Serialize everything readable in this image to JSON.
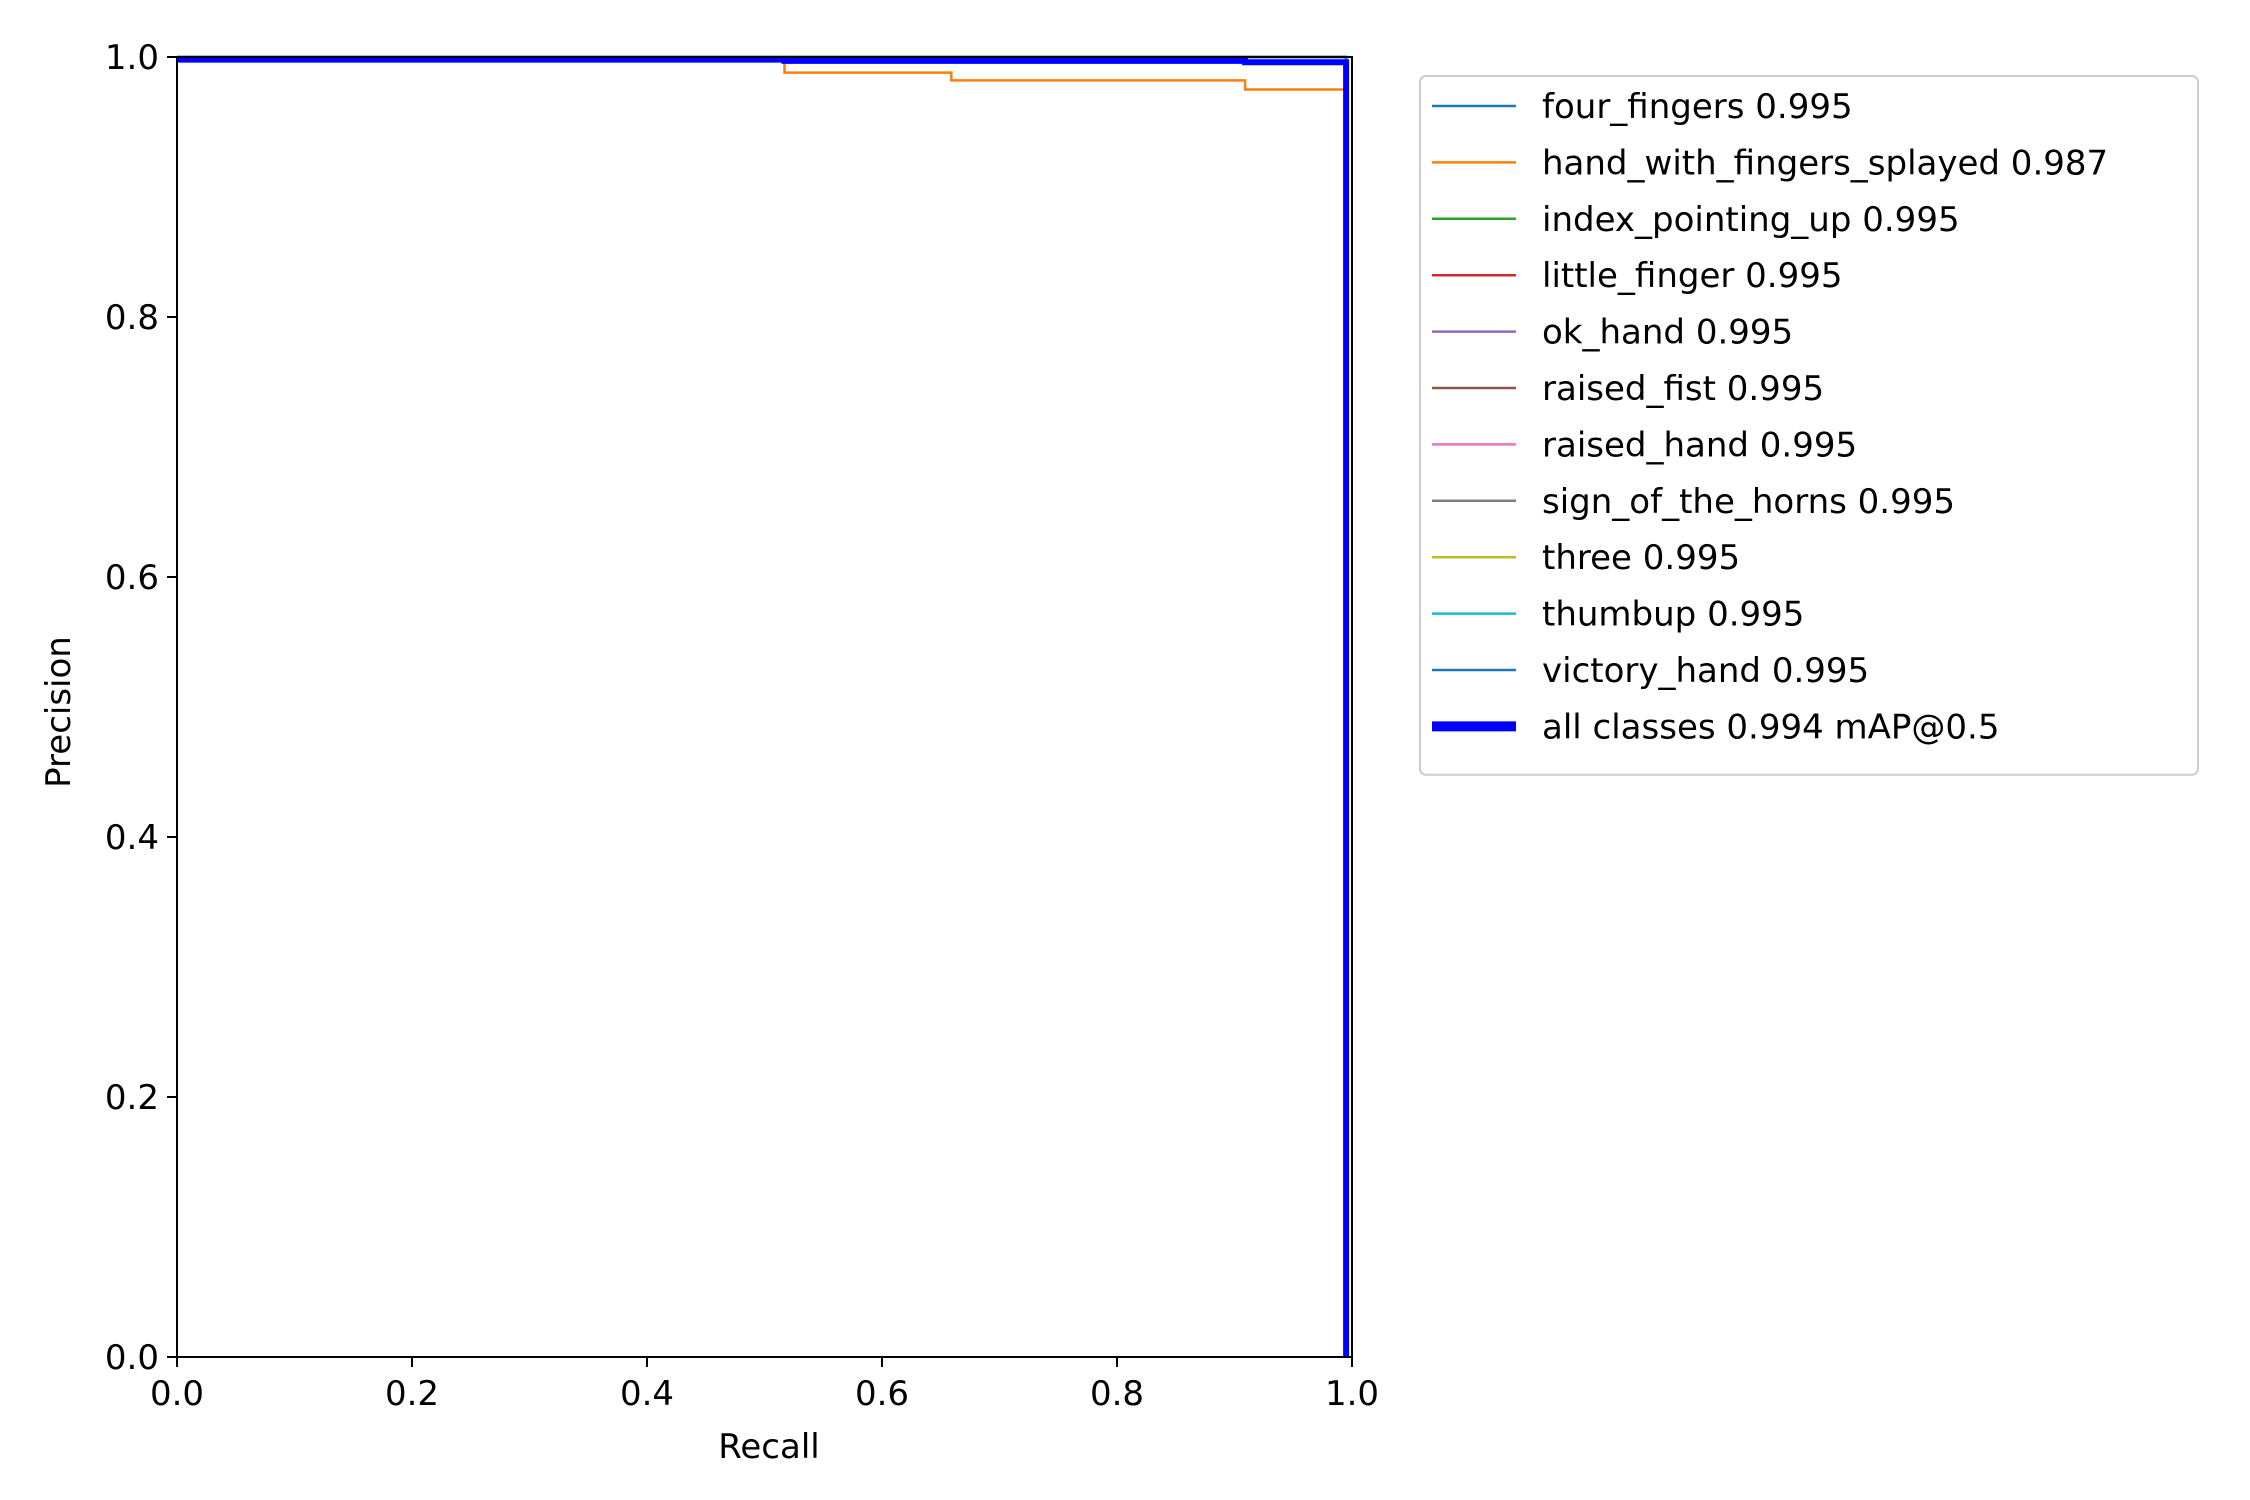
{
  "chart_data": {
    "type": "line",
    "title": "",
    "xlabel": "Recall",
    "ylabel": "Precision",
    "xlim": [
      0.0,
      1.0
    ],
    "ylim": [
      0.0,
      1.0
    ],
    "xticks": [
      "0.0",
      "0.2",
      "0.4",
      "0.6",
      "0.8",
      "1.0"
    ],
    "yticks": [
      "0.0",
      "0.2",
      "0.4",
      "0.6",
      "0.8",
      "1.0"
    ],
    "grid": false,
    "legend_position": "outside-right",
    "series": [
      {
        "name": "four_fingers 0.995",
        "color": "#1f77b4",
        "width": 1,
        "points": [
          [
            0,
            1.0
          ],
          [
            0.995,
            1.0
          ],
          [
            0.995,
            0.0
          ]
        ]
      },
      {
        "name": "hand_with_fingers_splayed 0.987",
        "color": "#ff7f0e",
        "width": 1,
        "points": [
          [
            0,
            1.0
          ],
          [
            0.517,
            1.0
          ],
          [
            0.517,
            0.988
          ],
          [
            0.659,
            0.988
          ],
          [
            0.659,
            0.982
          ],
          [
            0.909,
            0.982
          ],
          [
            0.909,
            0.975
          ],
          [
            0.995,
            0.975
          ],
          [
            0.995,
            0.0
          ]
        ]
      },
      {
        "name": "index_pointing_up 0.995",
        "color": "#2ca02c",
        "width": 1,
        "points": [
          [
            0,
            1.0
          ],
          [
            0.995,
            1.0
          ],
          [
            0.995,
            0.0
          ]
        ]
      },
      {
        "name": "little_finger 0.995",
        "color": "#d62728",
        "width": 1,
        "points": [
          [
            0,
            1.0
          ],
          [
            0.995,
            1.0
          ],
          [
            0.995,
            0.0
          ]
        ]
      },
      {
        "name": "ok_hand 0.995",
        "color": "#9467bd",
        "width": 1,
        "points": [
          [
            0,
            1.0
          ],
          [
            0.995,
            1.0
          ],
          [
            0.995,
            0.0
          ]
        ]
      },
      {
        "name": "raised_fist 0.995",
        "color": "#8c564b",
        "width": 1,
        "points": [
          [
            0,
            1.0
          ],
          [
            0.995,
            1.0
          ],
          [
            0.995,
            0.0
          ]
        ]
      },
      {
        "name": "raised_hand 0.995",
        "color": "#e377c2",
        "width": 1,
        "points": [
          [
            0,
            1.0
          ],
          [
            0.995,
            1.0
          ],
          [
            0.995,
            0.0
          ]
        ]
      },
      {
        "name": "sign_of_the_horns 0.995",
        "color": "#7f7f7f",
        "width": 1,
        "points": [
          [
            0,
            1.0
          ],
          [
            0.995,
            1.0
          ],
          [
            0.995,
            0.0
          ]
        ]
      },
      {
        "name": "three 0.995",
        "color": "#bcbd22",
        "width": 1,
        "points": [
          [
            0,
            1.0
          ],
          [
            0.995,
            1.0
          ],
          [
            0.995,
            0.0
          ]
        ]
      },
      {
        "name": "thumbup 0.995",
        "color": "#17becf",
        "width": 1,
        "points": [
          [
            0,
            1.0
          ],
          [
            0.995,
            1.0
          ],
          [
            0.995,
            0.0
          ]
        ]
      },
      {
        "name": "victory_hand 0.995",
        "color": "#1f77b4",
        "width": 1,
        "points": [
          [
            0,
            1.0
          ],
          [
            0.995,
            1.0
          ],
          [
            0.995,
            0.0
          ]
        ]
      },
      {
        "name": "all classes 0.994 mAP@0.5",
        "color": "#0000ff",
        "width": 3,
        "points": [
          [
            0,
            0.998
          ],
          [
            0.517,
            0.998
          ],
          [
            0.517,
            0.997
          ],
          [
            0.909,
            0.997
          ],
          [
            0.909,
            0.996
          ],
          [
            0.995,
            0.996
          ],
          [
            0.995,
            0.0
          ]
        ]
      }
    ]
  }
}
